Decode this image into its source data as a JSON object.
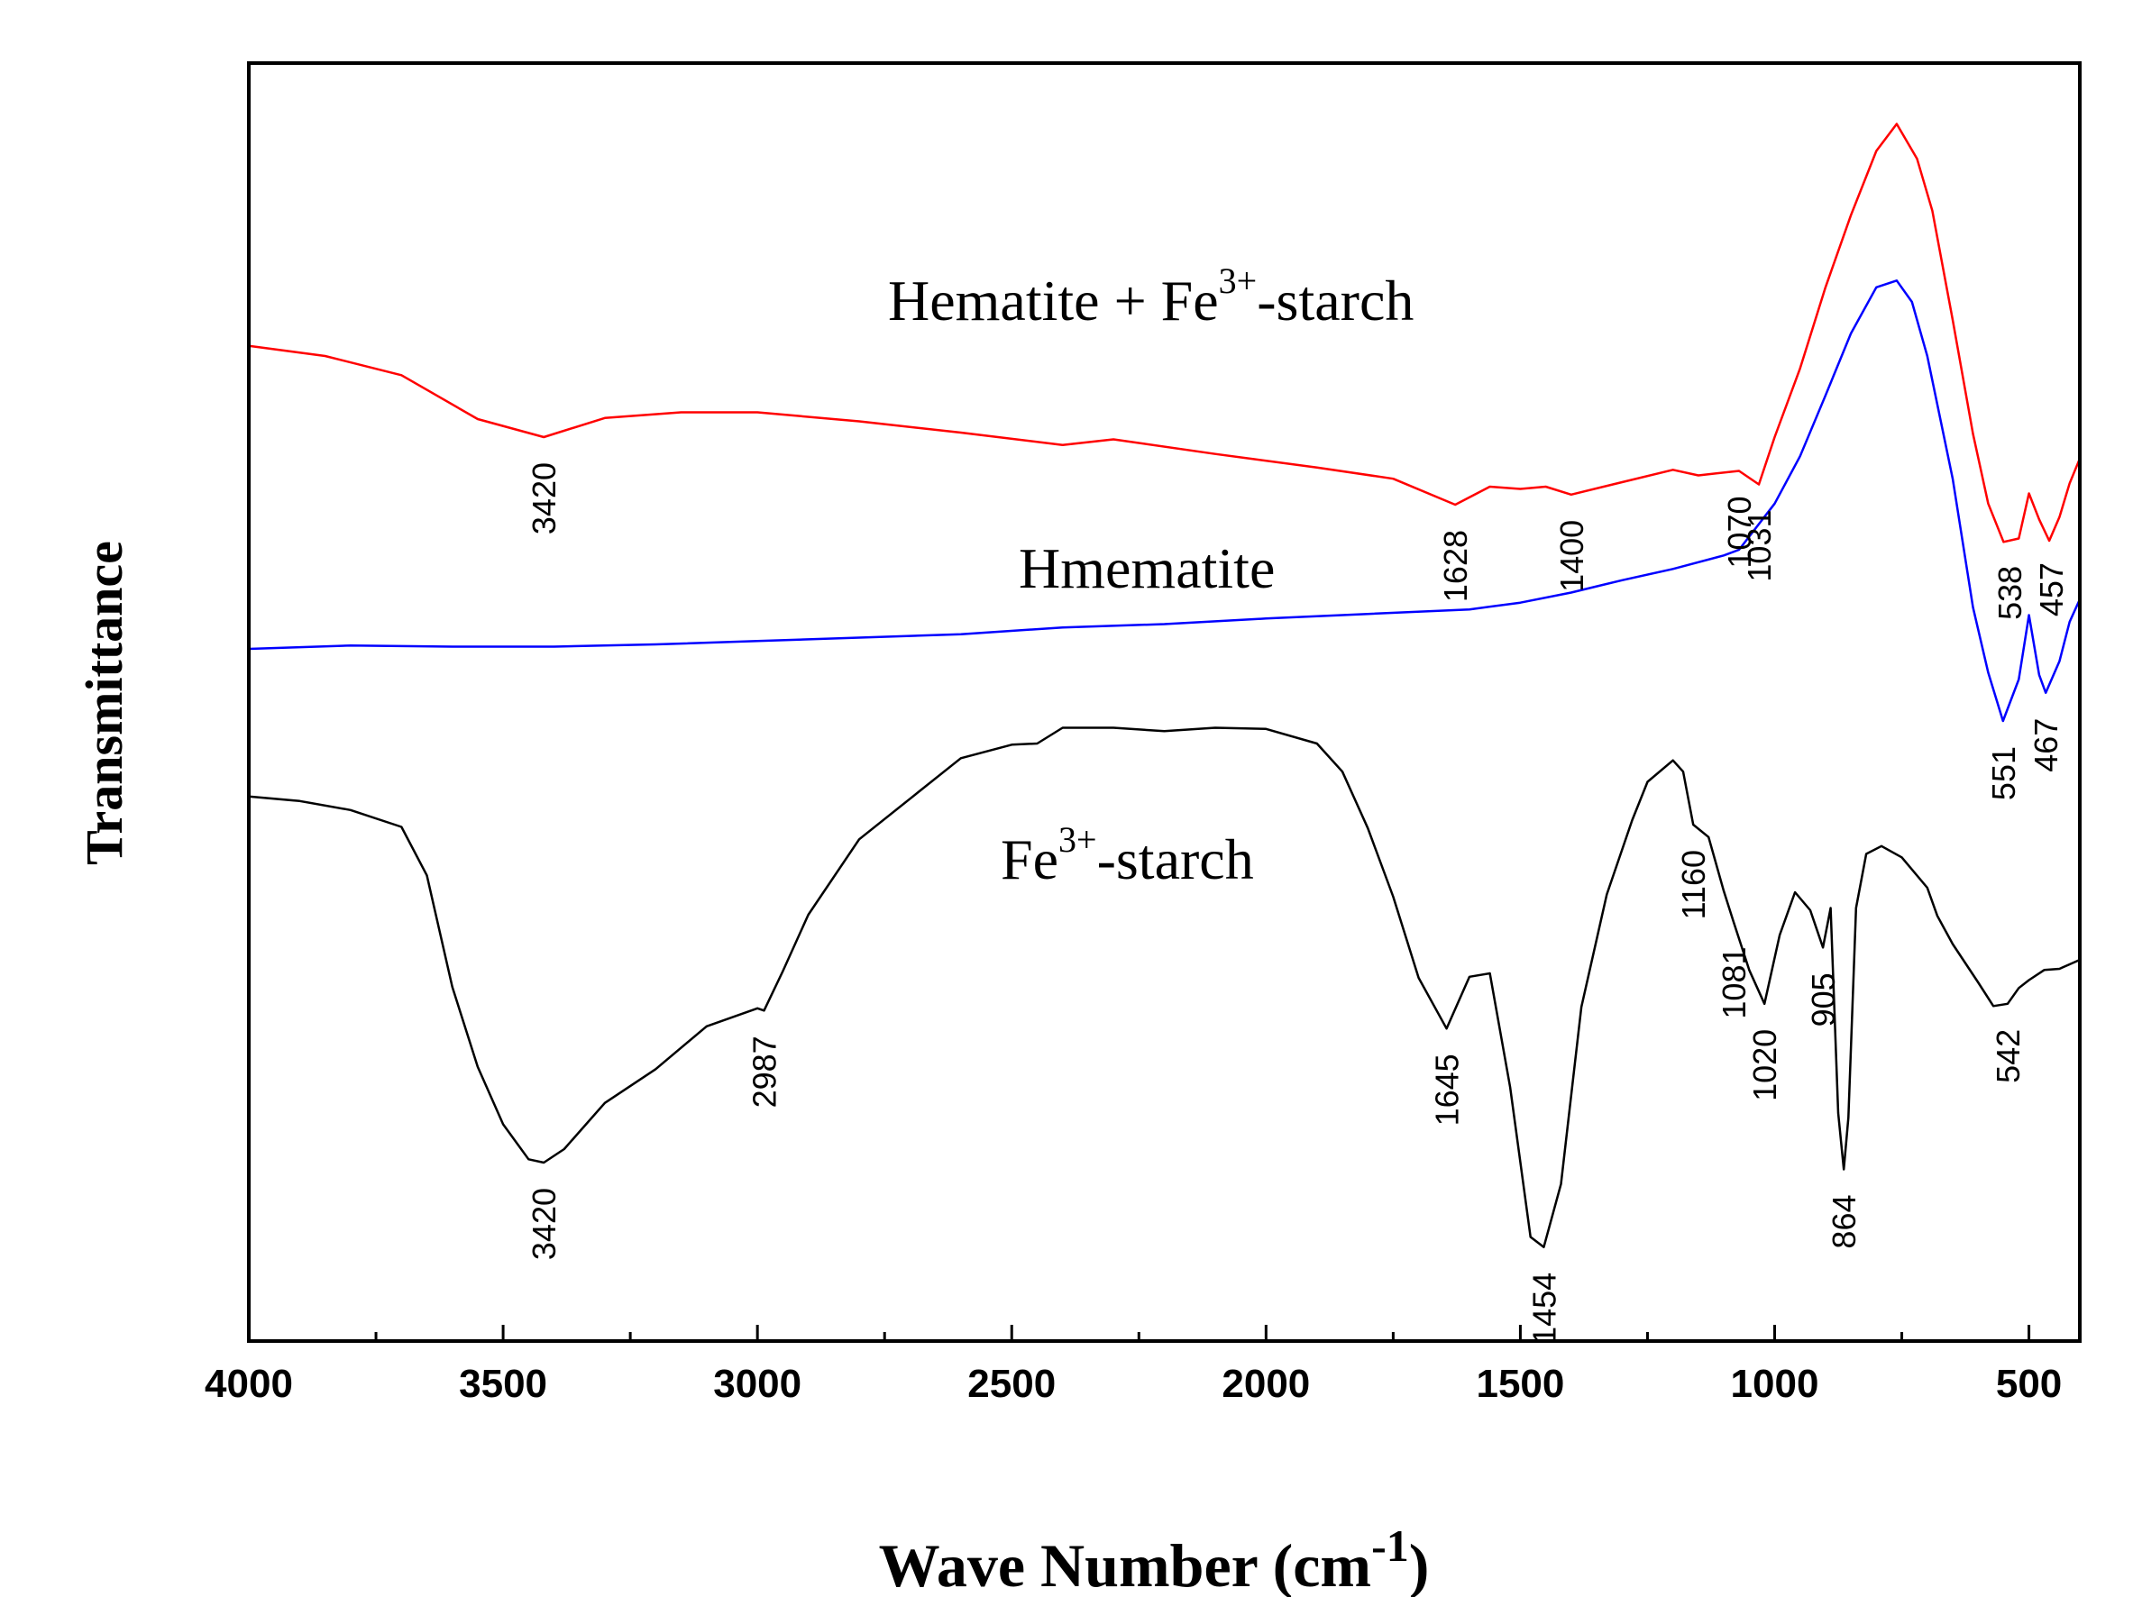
{
  "chart_data": {
    "type": "line",
    "title": "",
    "xlabel_main": "Wave Number (cm",
    "xlabel_sup": "-1",
    "xlabel_close": ")",
    "ylabel": "Transmittance",
    "xlim": [
      4000,
      400
    ],
    "ylim": [
      0,
      100
    ],
    "xticks": [
      4000,
      3500,
      3000,
      2500,
      2000,
      1500,
      1000,
      500
    ],
    "xtick_labels": [
      "4000",
      "3500",
      "3000",
      "2500",
      "2000",
      "1500",
      "1000",
      "500"
    ],
    "grid": false,
    "series": [
      {
        "name": "Hematite + Fe3+-starch",
        "label_main": "Hematite + Fe",
        "label_sup": "3+",
        "label_tail": "-starch",
        "color": "#ff0000",
        "x": [
          4000,
          3850,
          3700,
          3550,
          3420,
          3300,
          3150,
          3000,
          2800,
          2600,
          2400,
          2300,
          2100,
          1900,
          1750,
          1628,
          1560,
          1500,
          1450,
          1400,
          1300,
          1200,
          1150,
          1070,
          1031,
          1000,
          950,
          900,
          850,
          800,
          760,
          720,
          690,
          650,
          610,
          580,
          550,
          520,
          500,
          480,
          460,
          440,
          420,
          400
        ],
        "y": [
          80.5,
          79.6,
          77.9,
          74.0,
          72.4,
          74.1,
          74.6,
          74.6,
          73.8,
          72.8,
          71.7,
          72.2,
          70.9,
          69.7,
          68.7,
          66.4,
          68.0,
          67.8,
          68.0,
          67.3,
          68.4,
          69.5,
          69.0,
          69.4,
          68.2,
          72.4,
          78.5,
          85.7,
          92.1,
          97.8,
          100.2,
          97.1,
          92.5,
          82.8,
          72.7,
          66.5,
          63.1,
          63.4,
          67.4,
          65.1,
          63.2,
          65.3,
          68.3,
          70.5
        ]
      },
      {
        "name": "Hmematite",
        "label_main": "Hmematite",
        "label_sup": "",
        "label_tail": "",
        "color": "#0000ff",
        "x": [
          4000,
          3800,
          3600,
          3400,
          3200,
          3000,
          2800,
          2600,
          2400,
          2200,
          2000,
          1800,
          1600,
          1500,
          1400,
          1300,
          1200,
          1100,
          1070,
          1000,
          950,
          900,
          850,
          800,
          760,
          730,
          700,
          650,
          610,
          580,
          551,
          520,
          500,
          480,
          467,
          440,
          420,
          400
        ],
        "y": [
          53.6,
          53.9,
          53.8,
          53.8,
          54.0,
          54.3,
          54.6,
          54.9,
          55.5,
          55.8,
          56.3,
          56.7,
          57.1,
          57.7,
          58.6,
          59.7,
          60.7,
          61.9,
          62.4,
          66.5,
          70.7,
          76.1,
          81.6,
          85.7,
          86.3,
          84.4,
          79.6,
          68.7,
          57.3,
          51.5,
          47.2,
          50.9,
          56.6,
          51.3,
          49.7,
          52.5,
          56.0,
          58.0
        ]
      },
      {
        "name": "Fe3+-starch",
        "label_main": "Fe",
        "label_sup": "3+",
        "label_tail": "-starch",
        "color": "#000000",
        "x": [
          4000,
          3900,
          3800,
          3700,
          3650,
          3600,
          3550,
          3500,
          3450,
          3420,
          3380,
          3300,
          3200,
          3100,
          3000,
          2987,
          2950,
          2900,
          2800,
          2700,
          2600,
          2500,
          2450,
          2400,
          2300,
          2200,
          2100,
          2000,
          1900,
          1850,
          1800,
          1750,
          1700,
          1645,
          1600,
          1560,
          1520,
          1480,
          1454,
          1420,
          1380,
          1330,
          1280,
          1250,
          1200,
          1180,
          1160,
          1130,
          1100,
          1081,
          1050,
          1020,
          990,
          960,
          930,
          905,
          890,
          875,
          864,
          855,
          840,
          820,
          790,
          750,
          700,
          680,
          650,
          600,
          570,
          542,
          520,
          500,
          470,
          440,
          420,
          400
        ],
        "y": [
          40.5,
          40.1,
          39.3,
          37.8,
          33.5,
          23.6,
          16.5,
          11.4,
          8.3,
          8.0,
          9.2,
          13.3,
          16.3,
          20.1,
          21.7,
          21.5,
          25.0,
          30.0,
          36.7,
          40.3,
          43.9,
          45.1,
          45.2,
          46.6,
          46.6,
          46.3,
          46.6,
          46.5,
          45.2,
          42.7,
          37.7,
          31.6,
          24.4,
          19.9,
          24.5,
          24.8,
          14.7,
          1.4,
          0.5,
          6.1,
          21.8,
          31.8,
          38.4,
          41.8,
          43.7,
          42.7,
          38.0,
          36.9,
          32.1,
          29.4,
          25.1,
          22.1,
          28.2,
          32.0,
          30.4,
          27.1,
          30.6,
          12.4,
          7.4,
          12.0,
          30.6,
          35.4,
          36.1,
          35.1,
          32.4,
          29.9,
          27.4,
          24.0,
          21.9,
          22.1,
          23.5,
          24.2,
          25.1,
          25.2,
          25.6,
          26.0
        ]
      }
    ],
    "annotations": [
      {
        "text": "3420",
        "x": 3420,
        "series": 0
      },
      {
        "text": "1628",
        "x": 1628,
        "series": 0
      },
      {
        "text": "1400",
        "x": 1400,
        "series": 0
      },
      {
        "text": "1070",
        "x": 1070,
        "series": 0
      },
      {
        "text": "1031",
        "x": 1031,
        "series": 0
      },
      {
        "text": "538",
        "x": 538,
        "series": 0
      },
      {
        "text": "457",
        "x": 457,
        "series": 0
      },
      {
        "text": "551",
        "x": 551,
        "series": 1
      },
      {
        "text": "467",
        "x": 467,
        "series": 1
      },
      {
        "text": "3420",
        "x": 3420,
        "series": 2
      },
      {
        "text": "2987",
        "x": 2987,
        "series": 2
      },
      {
        "text": "1645",
        "x": 1645,
        "series": 2
      },
      {
        "text": "1454",
        "x": 1454,
        "series": 2
      },
      {
        "text": "1160",
        "x": 1160,
        "series": 2
      },
      {
        "text": "1081",
        "x": 1081,
        "series": 2
      },
      {
        "text": "1020",
        "x": 1020,
        "series": 2
      },
      {
        "text": "905",
        "x": 905,
        "series": 2
      },
      {
        "text": "864",
        "x": 864,
        "series": 2
      },
      {
        "text": "542",
        "x": 542,
        "series": 2
      }
    ]
  }
}
